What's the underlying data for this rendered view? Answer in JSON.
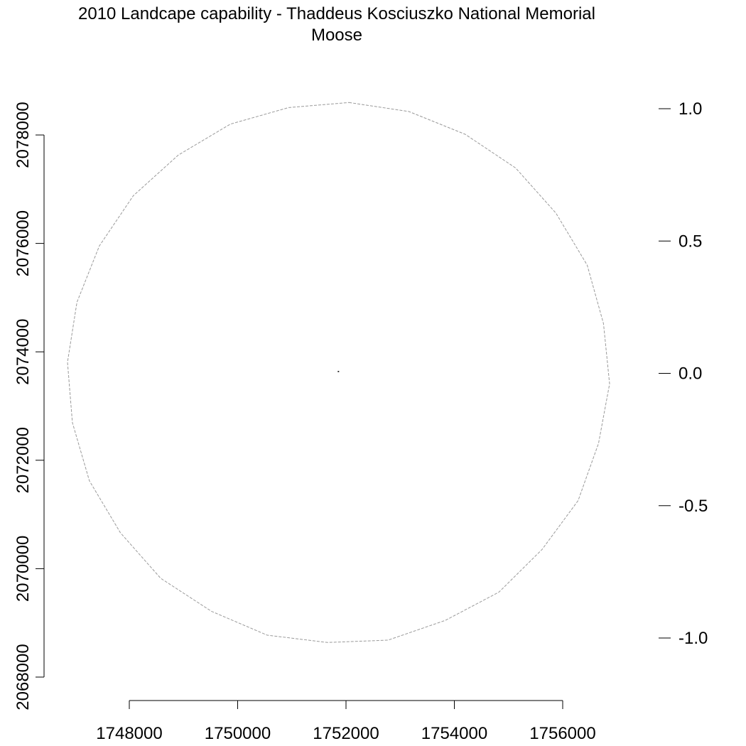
{
  "title_line1": "2010 Landcape capability - Thaddeus Kosciuszko National Memorial",
  "title_line2": "Moose",
  "chart_data": {
    "type": "map",
    "x_axis": {
      "ticks": [
        1748000,
        1750000,
        1752000,
        1754000,
        1756000
      ],
      "tick_labels": [
        "1748000",
        "1750000",
        "1752000",
        "1754000",
        "1756000"
      ]
    },
    "y_axis": {
      "ticks": [
        2068000,
        2070000,
        2072000,
        2074000,
        2076000,
        2078000
      ],
      "tick_labels": [
        "2068000",
        "2070000",
        "2072000",
        "2074000",
        "2076000",
        "2078000"
      ]
    },
    "legend_scale": {
      "ticks": [
        1.0,
        0.5,
        0.0,
        -0.5,
        -1.0
      ],
      "tick_labels": [
        "1.0",
        "0.5",
        "0.0",
        "-0.5",
        "-1.0"
      ]
    },
    "study_area_center": [
      1751860,
      2073640
    ],
    "buffer_outline": "dashed gray circle around the study area",
    "buffer_color": "#9a9a9a"
  }
}
